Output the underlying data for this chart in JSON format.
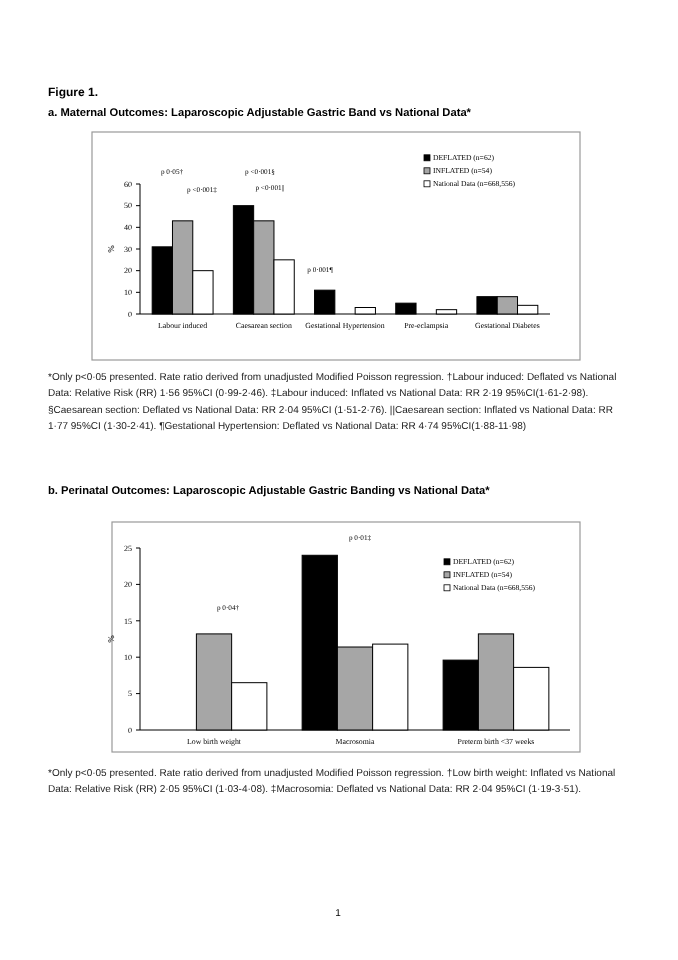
{
  "chart_data": [
    {
      "type": "bar",
      "title": "Figure 1.",
      "subtitle": "a. Maternal Outcomes: Laparoscopic Adjustable Gastric Band vs National Data*",
      "ylabel": "%",
      "categories": [
        "Labour induced",
        "Caesarean section",
        "Gestational Hypertension",
        "Pre-eclampsia",
        "Gestational Diabetes"
      ],
      "series": [
        {
          "name": "DEFLATED (n=62)",
          "color": "#000000",
          "values": [
            31,
            50,
            11,
            5,
            8
          ]
        },
        {
          "name": "INFLATED (n=54)",
          "color": "#a6a6a6",
          "values": [
            43,
            43,
            null,
            null,
            8
          ]
        },
        {
          "name": "National Data (n=668,556)",
          "color": "#ffffff",
          "values": [
            20,
            25,
            3,
            2,
            4
          ]
        }
      ],
      "ylim": [
        0,
        60
      ],
      "yticks": [
        0,
        10,
        20,
        30,
        40,
        50,
        60
      ],
      "legend": "top right",
      "annotations": [
        "p 0·05†",
        "p <0·001‡",
        "p <0·001§",
        "p <0·001||",
        "p 0·001¶",
        "*Only p<0·05 presented. Rate ratio derived from unadjusted Modified Poisson regression. †Labour induced: Deflated vs National Data: Relative Risk (RR) 1·56 95%CI (0·99-2·46). ‡Labour induced: Inflated vs National Data: RR 2·19 95%CI(1·61-2·98). §Caesarean section: Deflated vs National Data: RR 2·04 95%CI (1·51-2·76). ||Caesarean section: Inflated vs National Data: RR 1·77 95%CI (1·30-2·41). ¶Gestational Hypertension: Deflated vs National Data: RR 4·74 95%CI(1·88-11·98)"
      ]
    },
    {
      "type": "bar",
      "title": "b. Perinatal Outcomes: Laparoscopic Adjustable Gastric Banding vs National Data*",
      "ylabel": "%",
      "categories": [
        "Low birth weight",
        "Macrosomia",
        "Preterm birth <37 weeks"
      ],
      "series": [
        {
          "name": "DEFLATED (n=62)",
          "color": "#000000",
          "values": [
            null,
            24,
            9.6
          ]
        },
        {
          "name": "INFLATED (n=54)",
          "color": "#a6a6a6",
          "values": [
            13.2,
            11.4,
            13.2
          ]
        },
        {
          "name": "National Data (n=668,556)",
          "color": "#ffffff",
          "values": [
            6.5,
            11.8,
            8.6
          ]
        }
      ],
      "ylim": [
        0,
        25
      ],
      "yticks": [
        0,
        5,
        10,
        15,
        20,
        25
      ],
      "legend": "top right",
      "annotations": [
        "p 0·04†",
        "p 0·01‡",
        "*Only p<0·05 presented. Rate ratio derived from unadjusted Modified Poisson regression. †Low birth weight: Inflated vs National Data: Relative Risk (RR) 2·05 95%CI (1·03-4·08). ‡Macrosomia: Deflated vs National Data: RR 2·04 95%CI (1·19-3·51).",
        "1"
      ]
    }
  ]
}
